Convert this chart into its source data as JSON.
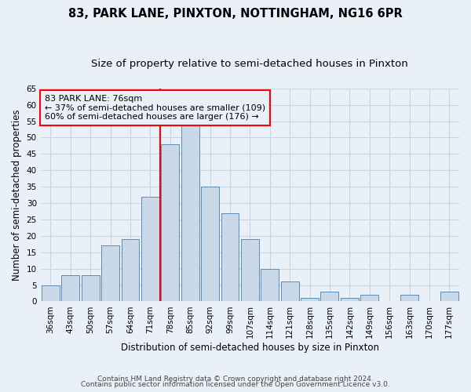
{
  "title1": "83, PARK LANE, PINXTON, NOTTINGHAM, NG16 6PR",
  "title2": "Size of property relative to semi-detached houses in Pinxton",
  "xlabel": "Distribution of semi-detached houses by size in Pinxton",
  "ylabel": "Number of semi-detached properties",
  "categories": [
    "36sqm",
    "43sqm",
    "50sqm",
    "57sqm",
    "64sqm",
    "71sqm",
    "78sqm",
    "85sqm",
    "92sqm",
    "99sqm",
    "107sqm",
    "114sqm",
    "121sqm",
    "128sqm",
    "135sqm",
    "142sqm",
    "149sqm",
    "156sqm",
    "163sqm",
    "170sqm",
    "177sqm"
  ],
  "values": [
    5,
    8,
    8,
    17,
    19,
    32,
    48,
    54,
    35,
    27,
    19,
    10,
    6,
    1,
    3,
    1,
    2,
    0,
    2,
    0,
    3
  ],
  "bar_color": "#c9d9e8",
  "bar_edge_color": "#5b8db8",
  "grid_color": "#c8d4e4",
  "background_color": "#eaf0f8",
  "property_label": "83 PARK LANE: 76sqm",
  "pct_smaller": 37,
  "pct_smaller_n": 109,
  "pct_larger": 60,
  "pct_larger_n": 176,
  "vline_bin_index": 6,
  "vline_color": "red",
  "annotation_box_color": "red",
  "ylim": [
    0,
    65
  ],
  "yticks": [
    0,
    5,
    10,
    15,
    20,
    25,
    30,
    35,
    40,
    45,
    50,
    55,
    60,
    65
  ],
  "footer1": "Contains HM Land Registry data © Crown copyright and database right 2024.",
  "footer2": "Contains public sector information licensed under the Open Government Licence v3.0.",
  "title_fontsize": 10.5,
  "subtitle_fontsize": 9.5,
  "axis_label_fontsize": 8.5,
  "tick_fontsize": 7.5,
  "annotation_fontsize": 8,
  "footer_fontsize": 6.5
}
